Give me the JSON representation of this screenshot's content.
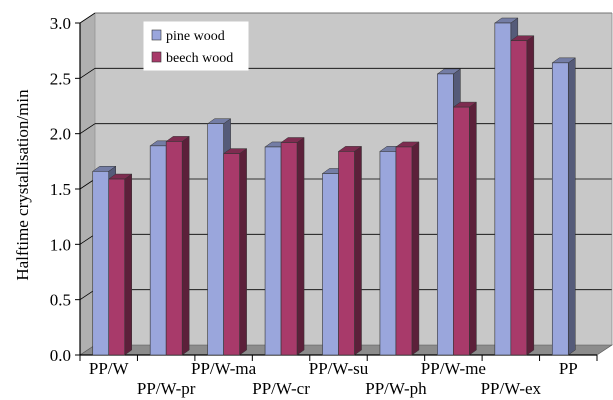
{
  "chart_data": {
    "type": "bar",
    "title": "",
    "xlabel": "",
    "ylabel": "Halftime crystallisation/min",
    "ylim": [
      0,
      3.0
    ],
    "yticks": [
      "0.0",
      "0.5",
      "1.0",
      "1.5",
      "2.0",
      "2.5",
      "3.0"
    ],
    "grid": true,
    "legend_position": "top-left",
    "categories": [
      "PP/W",
      "PP/W-pr",
      "PP/W-ma",
      "PP/W-cr",
      "PP/W-su",
      "PP/W-ph",
      "PP/W-me",
      "PP/W-ex",
      "PP"
    ],
    "series": [
      {
        "name": "pine wood",
        "color": "#9aa6dc",
        "values": [
          1.66,
          1.89,
          2.09,
          1.88,
          1.64,
          1.84,
          2.54,
          3.0,
          2.64
        ]
      },
      {
        "name": "beech wood",
        "color": "#a83a6a",
        "values": [
          1.59,
          1.93,
          1.82,
          1.92,
          1.84,
          1.88,
          2.24,
          2.84,
          null
        ]
      }
    ]
  }
}
